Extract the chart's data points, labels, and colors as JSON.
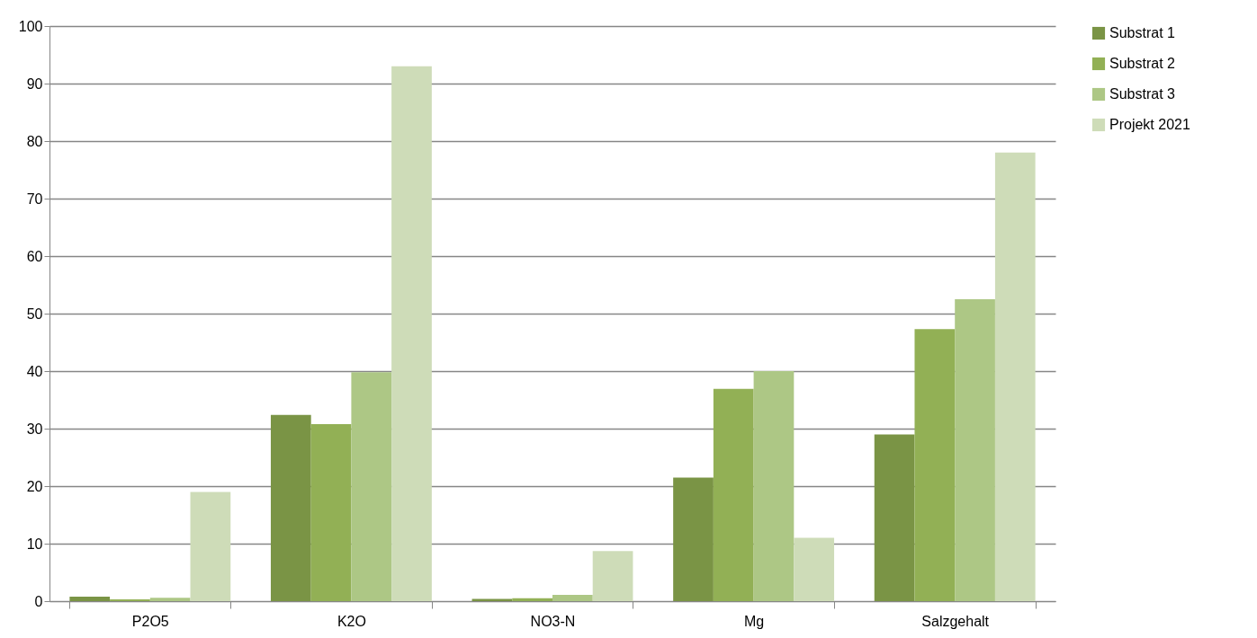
{
  "chart_data": {
    "type": "bar",
    "categories": [
      "P2O5",
      "K2O",
      "NO3-N",
      "Mg",
      "Salzgehalt"
    ],
    "series": [
      {
        "name": "Substrat 1",
        "color": "#7a9445",
        "values": [
          0.8,
          32.4,
          0.4,
          21.5,
          29
        ]
      },
      {
        "name": "Substrat 2",
        "color": "#92b055",
        "values": [
          0.3,
          30.8,
          0.5,
          36.9,
          47.3
        ]
      },
      {
        "name": "Substrat 3",
        "color": "#adc785",
        "values": [
          0.6,
          39.8,
          1.1,
          40,
          52.5
        ]
      },
      {
        "name": "Projekt 2021",
        "color": "#cedcb8",
        "values": [
          19,
          93,
          8.7,
          11,
          78
        ]
      }
    ],
    "ylim": [
      0,
      100
    ],
    "yticks": [
      0,
      10,
      20,
      30,
      40,
      50,
      60,
      70,
      80,
      90,
      100
    ],
    "grid": "y",
    "legend": "right"
  }
}
